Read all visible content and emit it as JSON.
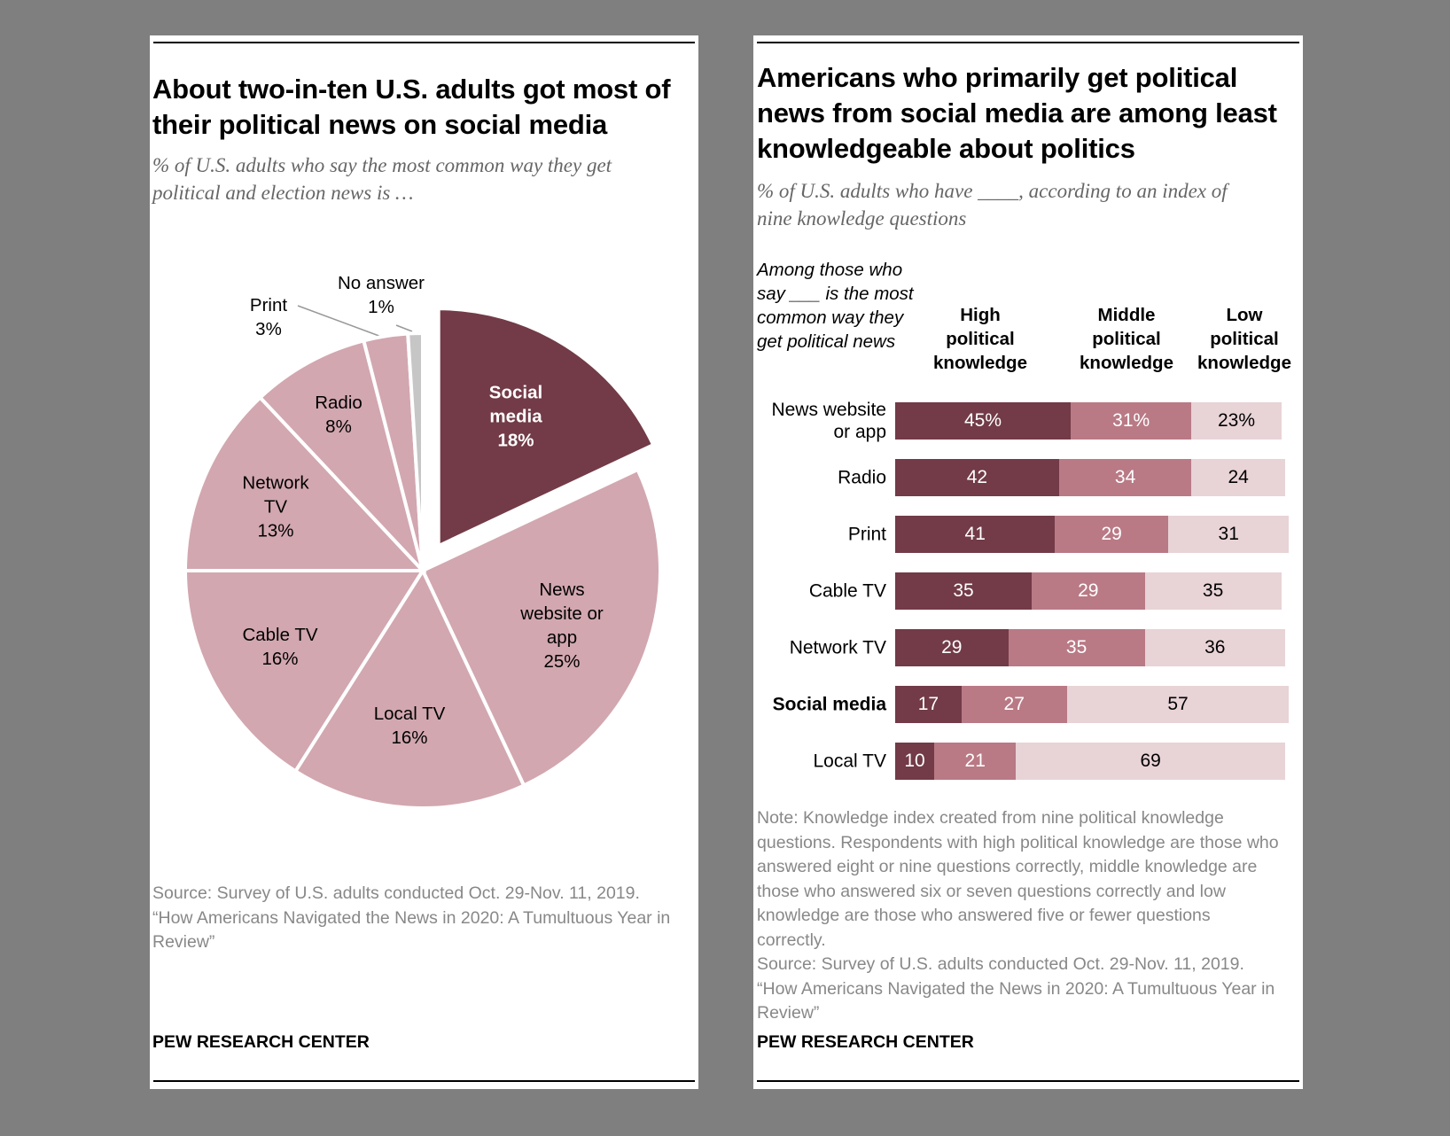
{
  "colors": {
    "dark": "#723b47",
    "pie_light": "#d2a7b0",
    "mid": "#b97a85",
    "light": "#e8d3d7",
    "no_answer": "#c6c6c6"
  },
  "left": {
    "title": [
      "About two-in-ten U.S. adults got most of",
      "their political news on social media"
    ],
    "subtitle": [
      "% of U.S. adults who say the most common way they get",
      "political and election news is …"
    ],
    "source": [
      "Source: Survey of U.S. adults conducted Oct. 29-Nov. 11, 2019.",
      "“How Americans Navigated the News in 2020: A Tumultuous Year in",
      "Review”"
    ],
    "footer": "PEW RESEARCH CENTER"
  },
  "right": {
    "title": [
      "Americans who primarily get political",
      "news from social media are among least",
      "knowledgeable about politics"
    ],
    "subtitle": [
      "% of U.S. adults who have ____, according to an index of",
      "nine knowledge questions"
    ],
    "row_header": [
      "Among those who",
      "say ___ is the most",
      "common way they",
      "get political news"
    ],
    "note": [
      "Note: Knowledge index created from nine political knowledge",
      "questions. Respondents with high political knowledge are those who",
      "answered eight or nine questions correctly, middle knowledge are",
      "those who answered six or seven questions correctly and low",
      "knowledge are those who answered five or fewer questions",
      "correctly.",
      "Source: Survey of U.S. adults conducted Oct. 29-Nov. 11, 2019.",
      "“How Americans Navigated the News in 2020: A Tumultuous Year in",
      "Review”"
    ],
    "footer": "PEW RESEARCH CENTER"
  },
  "chart_data": [
    {
      "type": "pie",
      "title": "About two-in-ten U.S. adults got most of their political news on social media",
      "slices": [
        {
          "label": [
            "Social",
            "media"
          ],
          "value": 18,
          "value_label": "18%",
          "highlight": true
        },
        {
          "label": [
            "News",
            "website or",
            "app"
          ],
          "value": 25,
          "value_label": "25%"
        },
        {
          "label": [
            "Local TV"
          ],
          "value": 16,
          "value_label": "16%"
        },
        {
          "label": [
            "Cable TV"
          ],
          "value": 16,
          "value_label": "16%"
        },
        {
          "label": [
            "Network",
            "TV"
          ],
          "value": 13,
          "value_label": "13%"
        },
        {
          "label": [
            "Radio"
          ],
          "value": 8,
          "value_label": "8%"
        },
        {
          "label": [
            "Print"
          ],
          "value": 3,
          "value_label": "3%"
        },
        {
          "label": [
            "No answer"
          ],
          "value": 1,
          "value_label": "1%"
        }
      ]
    },
    {
      "type": "bar",
      "orientation": "horizontal",
      "stacked": true,
      "title": "Americans who primarily get political news from social media are among least knowledgeable about politics",
      "categories": [
        "News website or app",
        "Radio",
        "Print",
        "Cable TV",
        "Network TV",
        "Social media",
        "Local TV"
      ],
      "category_labels": [
        [
          "News website",
          "or app"
        ],
        [
          "Radio"
        ],
        [
          "Print"
        ],
        [
          "Cable TV"
        ],
        [
          "Network TV"
        ],
        [
          "Social media"
        ],
        [
          "Local TV"
        ]
      ],
      "series": [
        {
          "name": [
            "High",
            "political",
            "knowledge"
          ],
          "values": [
            45,
            42,
            41,
            35,
            29,
            17,
            10
          ],
          "labels": [
            "45%",
            "42",
            "41",
            "35",
            "29",
            "17",
            "10"
          ]
        },
        {
          "name": [
            "Middle",
            "political",
            "knowledge"
          ],
          "values": [
            31,
            34,
            29,
            29,
            35,
            27,
            21
          ],
          "labels": [
            "31%",
            "34",
            "29",
            "29",
            "35",
            "27",
            "21"
          ]
        },
        {
          "name": [
            "Low",
            "political",
            "knowledge"
          ],
          "values": [
            23,
            24,
            31,
            35,
            36,
            57,
            69
          ],
          "labels": [
            "23%",
            "24",
            "31",
            "35",
            "36",
            "57",
            "69"
          ]
        }
      ],
      "xlim": [
        0,
        100
      ]
    }
  ]
}
